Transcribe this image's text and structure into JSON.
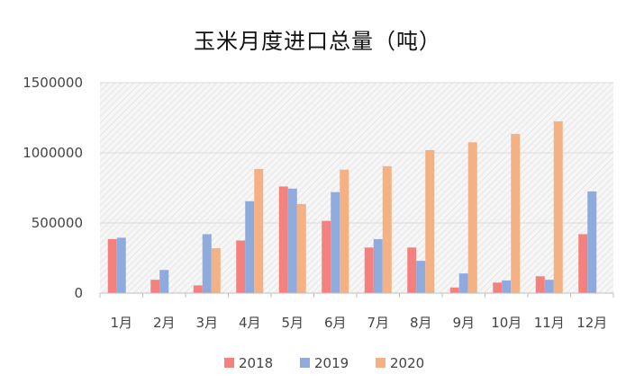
{
  "chart_data": {
    "type": "bar",
    "title": "玉米月度进口总量（吨）",
    "xlabel": "",
    "ylabel": "",
    "categories": [
      "1月",
      "2月",
      "3月",
      "4月",
      "5月",
      "6月",
      "7月",
      "8月",
      "9月",
      "10月",
      "11月",
      "12月"
    ],
    "series": [
      {
        "name": "2018",
        "color": "#f4817d",
        "values": [
          385000,
          95000,
          55000,
          375000,
          760000,
          515000,
          325000,
          325000,
          40000,
          75000,
          120000,
          420000
        ]
      },
      {
        "name": "2019",
        "color": "#8faadc",
        "values": [
          395000,
          165000,
          420000,
          655000,
          745000,
          720000,
          385000,
          230000,
          140000,
          90000,
          95000,
          725000
        ]
      },
      {
        "name": "2020",
        "color": "#f4b183",
        "values": [
          0,
          0,
          320000,
          885000,
          635000,
          880000,
          905000,
          1020000,
          1075000,
          1135000,
          1225000,
          0
        ]
      }
    ],
    "ylim": [
      0,
      1500000
    ],
    "yticks": [
      "0",
      "500000",
      "1000000",
      "1500000"
    ],
    "ytick_values": [
      0,
      500000,
      1000000,
      1500000
    ],
    "grid": true,
    "legend_position": "bottom",
    "plot_background": "hatched light gray"
  }
}
